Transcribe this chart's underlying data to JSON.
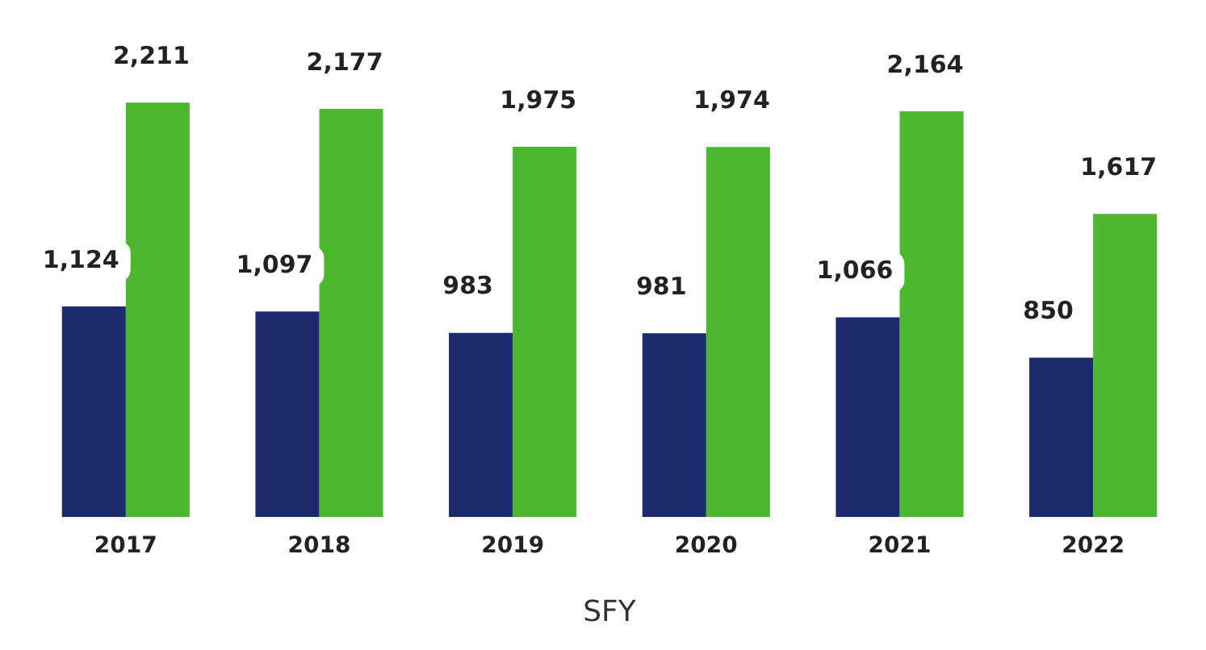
{
  "chart_data": {
    "type": "bar",
    "xlabel": "SFY",
    "categories": [
      "2017",
      "2018",
      "2019",
      "2020",
      "2021",
      "2022"
    ],
    "series": [
      {
        "color": "#1d2a6e",
        "values": [
          1124,
          1097,
          983,
          981,
          1066,
          850
        ],
        "value_labels": [
          "1,124",
          "1,097",
          "983",
          "981",
          "1,066",
          "850"
        ]
      },
      {
        "color": "#4cb830",
        "values": [
          2211,
          2177,
          1975,
          1974,
          2164,
          1617
        ],
        "value_labels": [
          "2,211",
          "2,177",
          "1,975",
          "1,974",
          "2,164",
          "1,617"
        ]
      }
    ],
    "relative": false,
    "grid": false,
    "legend": false
  }
}
